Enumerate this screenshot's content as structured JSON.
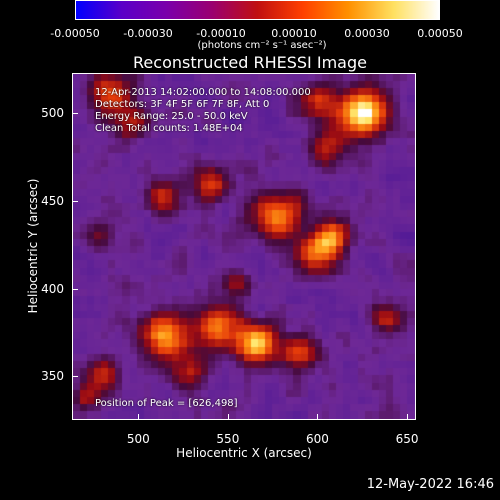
{
  "colorbar": {
    "ticks": [
      "-0.00050",
      "-0.00030",
      "-0.00010",
      "0.00010",
      "0.00030",
      "0.00050"
    ],
    "units_label": "(photons cm⁻² s⁻¹ asec⁻²)",
    "colors": [
      "#0000ff",
      "#5a00c8",
      "#7a00aa",
      "#9a0070",
      "#c01010",
      "#ff4000",
      "#ff9000",
      "#ffe060",
      "#ffffff"
    ]
  },
  "title": "Reconstructed RHESSI Image",
  "info": {
    "time_range": "12-Apr-2013 14:02:00.000 to 14:08:00.000",
    "detectors": "Detectors: 3F 4F 5F 6F 7F 8F, Att 0",
    "energy": "Energy Range: 25.0 - 50.0 keV",
    "clean": "Clean   Total counts: 1.48E+04",
    "peak": "Position of Peak = [626,498]"
  },
  "footer_date": "12-May-2022 16:46",
  "chart_data": {
    "type": "heatmap",
    "title": "Reconstructed RHESSI Image",
    "xlabel": "Heliocentric X (arcsec)",
    "ylabel": "Heliocentric Y (arcsec)",
    "xlim": [
      463,
      655
    ],
    "ylim": [
      325,
      523
    ],
    "x_ticks": [
      500,
      550,
      600,
      650
    ],
    "y_ticks": [
      350,
      400,
      450,
      500
    ],
    "colorbar_range": [
      -0.0005,
      0.0005
    ],
    "peak_position": [
      626,
      498
    ],
    "hotspots": [
      {
        "x": 626,
        "y": 500,
        "intensity": 1.0,
        "spread": 14
      },
      {
        "x": 600,
        "y": 507,
        "intensity": 0.45,
        "spread": 10
      },
      {
        "x": 485,
        "y": 512,
        "intensity": 0.55,
        "spread": 12
      },
      {
        "x": 495,
        "y": 495,
        "intensity": 0.4,
        "spread": 10
      },
      {
        "x": 513,
        "y": 452,
        "intensity": 0.55,
        "spread": 10
      },
      {
        "x": 540,
        "y": 458,
        "intensity": 0.55,
        "spread": 10
      },
      {
        "x": 578,
        "y": 442,
        "intensity": 0.7,
        "spread": 14
      },
      {
        "x": 600,
        "y": 420,
        "intensity": 0.7,
        "spread": 12
      },
      {
        "x": 610,
        "y": 430,
        "intensity": 0.55,
        "spread": 10
      },
      {
        "x": 480,
        "y": 430,
        "intensity": 0.3,
        "spread": 8
      },
      {
        "x": 515,
        "y": 372,
        "intensity": 0.75,
        "spread": 14
      },
      {
        "x": 545,
        "y": 378,
        "intensity": 0.7,
        "spread": 12
      },
      {
        "x": 567,
        "y": 368,
        "intensity": 0.85,
        "spread": 12
      },
      {
        "x": 590,
        "y": 362,
        "intensity": 0.55,
        "spread": 10
      },
      {
        "x": 640,
        "y": 382,
        "intensity": 0.5,
        "spread": 9
      },
      {
        "x": 480,
        "y": 350,
        "intensity": 0.45,
        "spread": 10
      },
      {
        "x": 470,
        "y": 338,
        "intensity": 0.4,
        "spread": 8
      },
      {
        "x": 530,
        "y": 352,
        "intensity": 0.4,
        "spread": 10
      },
      {
        "x": 605,
        "y": 480,
        "intensity": 0.4,
        "spread": 10
      },
      {
        "x": 555,
        "y": 403,
        "intensity": 0.35,
        "spread": 8
      }
    ]
  }
}
